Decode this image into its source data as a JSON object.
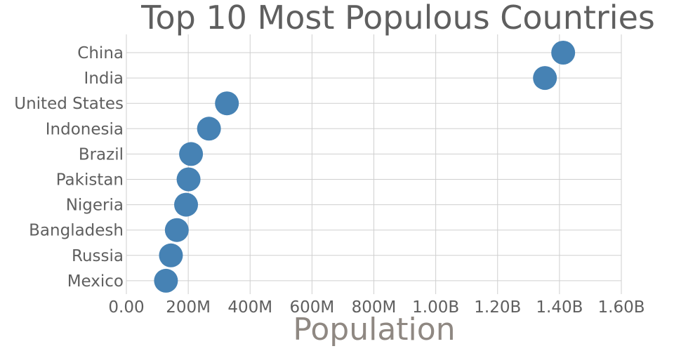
{
  "chart_data": {
    "type": "scatter",
    "title": "Top 10 Most Populous Countries",
    "xlabel": "Population",
    "ylabel": "",
    "xlim": [
      0,
      1600000000
    ],
    "x_ticks": [
      {
        "value": 0,
        "label": "0.00"
      },
      {
        "value": 200000000,
        "label": "200M"
      },
      {
        "value": 400000000,
        "label": "400M"
      },
      {
        "value": 600000000,
        "label": "600M"
      },
      {
        "value": 800000000,
        "label": "800M"
      },
      {
        "value": 1000000000,
        "label": "1.00B"
      },
      {
        "value": 1200000000,
        "label": "1.20B"
      },
      {
        "value": 1400000000,
        "label": "1.40B"
      },
      {
        "value": 1600000000,
        "label": "1.60B"
      }
    ],
    "categories": [
      "China",
      "India",
      "United States",
      "Indonesia",
      "Brazil",
      "Pakistan",
      "Nigeria",
      "Bangladesh",
      "Russia",
      "Mexico"
    ],
    "values": [
      1412000000,
      1353000000,
      325000000,
      267000000,
      209000000,
      201000000,
      193000000,
      163000000,
      144000000,
      128000000
    ],
    "marker_color": "#4682b4",
    "grid": true
  }
}
